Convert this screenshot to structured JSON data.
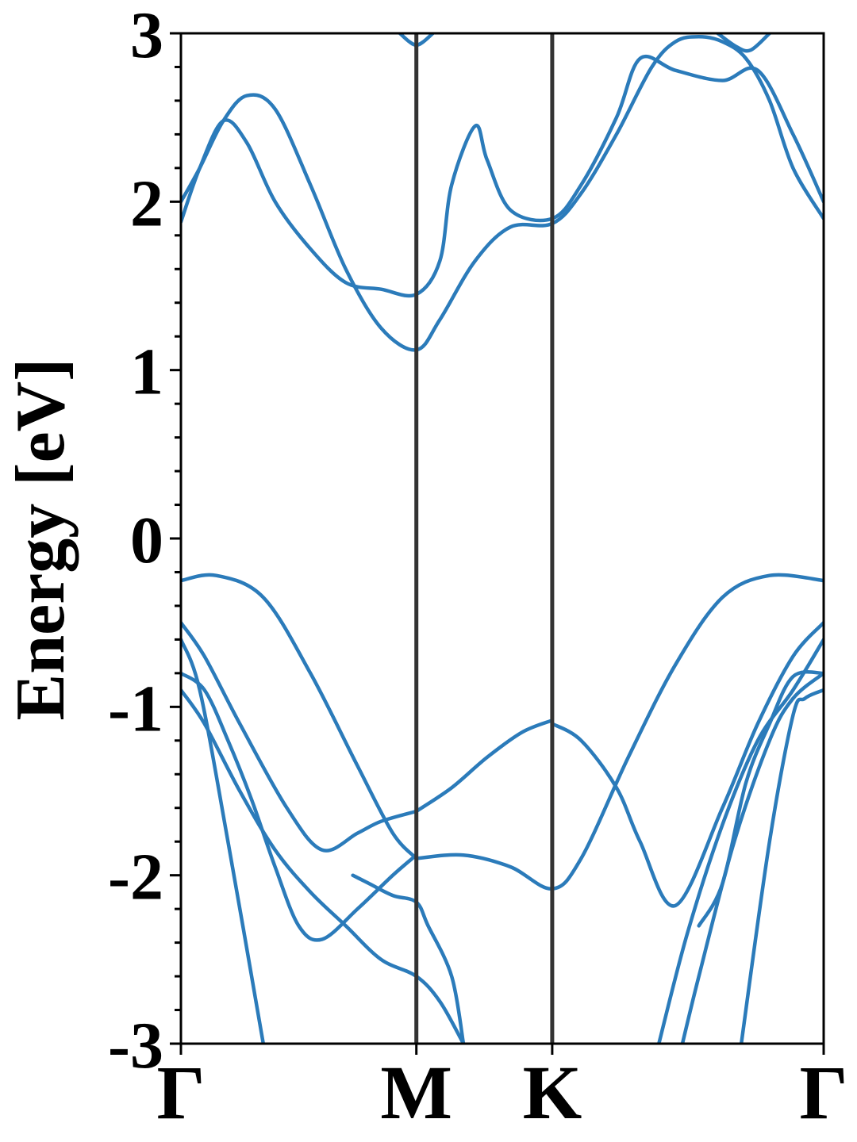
{
  "chart_data": {
    "type": "line",
    "title": "",
    "xlabel": "",
    "ylabel": "Energy [eV]",
    "ylim": [
      -3,
      3
    ],
    "xlim": [
      0,
      2.73
    ],
    "yticks": [
      "3",
      "2",
      "1",
      "0",
      "-1",
      "-2",
      "-3"
    ],
    "ytick_values": [
      3,
      2,
      1,
      0,
      -1,
      -2,
      -3
    ],
    "kpoints": [
      {
        "label": "Γ",
        "x": 0
      },
      {
        "label": "M",
        "x": 1.0
      },
      {
        "label": "K",
        "x": 1.577
      },
      {
        "label": "Γ",
        "x": 2.73
      }
    ],
    "grid": false,
    "colors": {
      "band": "#2b7bba",
      "kline": "#333333",
      "axis": "#000000"
    },
    "series": [
      {
        "x": [
          0,
          0.08,
          0.18,
          0.28,
          0.4,
          0.55,
          0.7,
          0.85,
          1.0,
          1.1,
          1.25,
          1.4,
          1.577,
          1.7,
          1.85,
          2.0,
          2.1,
          2.2,
          2.3,
          2.4,
          2.5,
          2.6,
          2.73
        ],
        "y": [
          2.0,
          2.2,
          2.48,
          2.63,
          2.55,
          2.1,
          1.6,
          1.25,
          1.12,
          1.3,
          1.65,
          1.85,
          1.87,
          2.05,
          2.4,
          2.8,
          2.95,
          2.98,
          2.95,
          2.85,
          2.6,
          2.2,
          1.9
        ]
      },
      {
        "x": [
          0,
          0.08,
          0.18,
          0.28,
          0.4,
          0.55,
          0.7,
          0.85,
          1.0,
          1.1,
          1.15,
          1.25,
          1.3,
          1.4,
          1.577,
          1.7,
          1.85,
          1.95,
          2.1,
          2.3,
          2.45,
          2.6,
          2.73
        ],
        "y": [
          1.88,
          2.2,
          2.48,
          2.35,
          2.0,
          1.72,
          1.52,
          1.48,
          1.45,
          1.65,
          2.1,
          2.45,
          2.25,
          1.95,
          1.9,
          2.1,
          2.5,
          2.85,
          2.78,
          2.72,
          2.78,
          2.4,
          2.0
        ]
      },
      {
        "x": [
          0.93,
          0.97,
          1.0,
          1.03,
          1.07
        ],
        "y": [
          3.0,
          2.95,
          2.93,
          2.95,
          3.0
        ]
      },
      {
        "x": [
          2.28,
          2.36,
          2.42,
          2.5
        ],
        "y": [
          3.0,
          2.92,
          2.9,
          3.0
        ]
      },
      {
        "x": [
          0,
          0.15,
          0.35,
          0.55,
          0.75,
          0.9,
          1.0
        ],
        "y": [
          -0.25,
          -0.22,
          -0.35,
          -0.8,
          -1.35,
          -1.75,
          -1.9
        ]
      },
      {
        "x": [
          1.0,
          1.2,
          1.4,
          1.577,
          1.7,
          1.9,
          2.1,
          2.3,
          2.5,
          2.73
        ],
        "y": [
          -1.9,
          -1.88,
          -1.95,
          -2.08,
          -1.9,
          -1.3,
          -0.75,
          -0.35,
          -0.22,
          -0.25
        ]
      },
      {
        "x": [
          1.577,
          1.7,
          1.85,
          1.95,
          2.1,
          2.3,
          2.45,
          2.6,
          2.73
        ],
        "y": [
          -1.1,
          -1.2,
          -1.48,
          -1.8,
          -2.18,
          -1.6,
          -1.1,
          -0.7,
          -0.5
        ]
      },
      {
        "x": [
          1.0,
          1.15,
          1.3,
          1.45,
          1.577
        ],
        "y": [
          -1.62,
          -1.48,
          -1.3,
          -1.15,
          -1.08
        ]
      },
      {
        "x": [
          0,
          0.1,
          0.25,
          0.45,
          0.6,
          0.75,
          0.85,
          1.0
        ],
        "y": [
          -0.5,
          -0.7,
          -1.1,
          -1.6,
          -1.85,
          -1.75,
          -1.68,
          -1.62
        ]
      },
      {
        "x": [
          0,
          0.1,
          0.2,
          0.3,
          0.4,
          0.5,
          0.6,
          0.75,
          0.9,
          1.0
        ],
        "y": [
          -0.8,
          -0.9,
          -1.2,
          -1.55,
          -1.95,
          -2.3,
          -2.38,
          -2.2,
          -2.0,
          -1.88
        ]
      },
      {
        "x": [
          0,
          0.1,
          0.25,
          0.4,
          0.55,
          0.7,
          0.85,
          1.0,
          1.1,
          1.2
        ],
        "y": [
          -0.9,
          -1.1,
          -1.5,
          -1.85,
          -2.1,
          -2.3,
          -2.5,
          -2.6,
          -2.75,
          -3.0
        ]
      },
      {
        "x": [
          0,
          0.08,
          0.2,
          0.35
        ],
        "y": [
          -0.6,
          -0.9,
          -1.8,
          -3.0
        ]
      },
      {
        "x": [
          0.73,
          0.8,
          0.9,
          1.0,
          1.05,
          1.15,
          1.2
        ],
        "y": [
          -2.0,
          -2.05,
          -2.12,
          -2.16,
          -2.3,
          -2.6,
          -3.0
        ]
      },
      {
        "x": [
          2.03,
          2.15,
          2.3,
          2.45,
          2.6,
          2.73
        ],
        "y": [
          -3.0,
          -2.35,
          -1.7,
          -1.2,
          -0.9,
          -0.6
        ]
      },
      {
        "x": [
          2.13,
          2.2,
          2.35,
          2.5,
          2.6,
          2.73
        ],
        "y": [
          -3.0,
          -2.6,
          -1.8,
          -1.2,
          -0.95,
          -0.8
        ]
      },
      {
        "x": [
          2.38,
          2.5,
          2.6,
          2.65,
          2.73
        ],
        "y": [
          -3.0,
          -1.8,
          -1.05,
          -0.95,
          -0.9
        ]
      },
      {
        "x": [
          2.2,
          2.3,
          2.4,
          2.5,
          2.6,
          2.73
        ],
        "y": [
          -2.3,
          -2.05,
          -1.45,
          -1.1,
          -0.82,
          -0.8
        ]
      }
    ]
  }
}
